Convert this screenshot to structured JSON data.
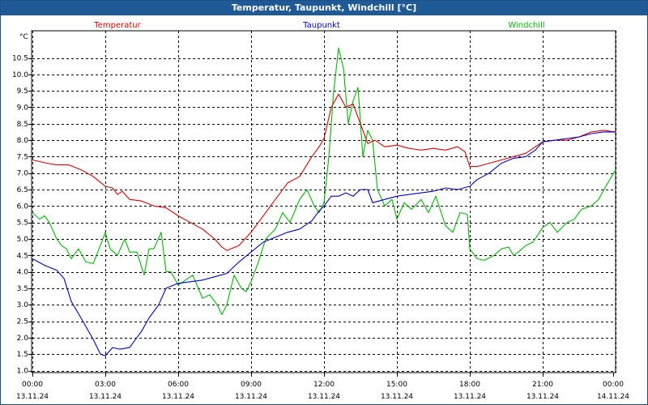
{
  "window": {
    "title": "Temperatur, Taupunkt, Windchill [°C]"
  },
  "chart_data": {
    "type": "line",
    "title": "Temperatur, Taupunkt, Windchill [°C]",
    "ylabel": "°C",
    "ylim": [
      1.0,
      11.0
    ],
    "y_ticks": [
      "1.0",
      "1.5",
      "2.0",
      "2.5",
      "3.0",
      "3.5",
      "4.0",
      "4.5",
      "5.0",
      "5.5",
      "6.0",
      "6.5",
      "7.0",
      "7.5",
      "8.0",
      "8.5",
      "9.0",
      "9.5",
      "10.0",
      "10.5"
    ],
    "xlim": [
      0,
      24
    ],
    "x_ticks": [
      {
        "time": "00:00",
        "date": "13.11.24"
      },
      {
        "time": "03:00",
        "date": "13.11.24"
      },
      {
        "time": "06:00",
        "date": "13.11.24"
      },
      {
        "time": "09:00",
        "date": "13.11.24"
      },
      {
        "time": "12:00",
        "date": "13.11.24"
      },
      {
        "time": "15:00",
        "date": "13.11.24"
      },
      {
        "time": "18:00",
        "date": "13.11.24"
      },
      {
        "time": "21:00",
        "date": "13.11.24"
      },
      {
        "time": "00:00",
        "date": "14.11.24"
      }
    ],
    "grid": true,
    "legend_position": "top",
    "series": [
      {
        "name": "Temperatur",
        "color": "#e00000",
        "x": [
          0,
          0.6,
          1,
          1.5,
          2,
          2.5,
          3,
          3.3,
          3.5,
          3.7,
          4,
          4.5,
          5,
          5.5,
          6,
          6.5,
          7,
          7.5,
          7.8,
          8,
          8.5,
          9,
          9.3,
          9.7,
          10,
          10.5,
          11,
          11.5,
          11.8,
          12,
          12.3,
          12.6,
          12.9,
          13.2,
          13.5,
          13.8,
          14.1,
          14.5,
          15,
          15.5,
          16,
          16.5,
          17,
          17.5,
          17.8,
          18,
          18.3,
          18.8,
          19.3,
          19.8,
          20.3,
          20.7,
          21,
          21.5,
          22,
          22.5,
          23,
          23.5,
          24
        ],
        "y": [
          7.4,
          7.3,
          7.25,
          7.25,
          7.1,
          6.9,
          6.6,
          6.55,
          6.35,
          6.45,
          6.2,
          6.15,
          6.0,
          5.95,
          5.7,
          5.5,
          5.3,
          5.0,
          4.75,
          4.65,
          4.8,
          5.2,
          5.5,
          5.9,
          6.2,
          6.7,
          6.9,
          7.5,
          7.8,
          8.05,
          9.0,
          9.4,
          9.0,
          9.1,
          8.5,
          7.9,
          8.0,
          7.8,
          7.85,
          7.75,
          7.7,
          7.75,
          7.7,
          7.8,
          7.65,
          7.2,
          7.2,
          7.3,
          7.4,
          7.5,
          7.6,
          7.8,
          7.95,
          8.0,
          8.0,
          8.1,
          8.25,
          8.3,
          8.25
        ]
      },
      {
        "name": "Taupunkt",
        "color": "#0000cc",
        "x": [
          0,
          0.5,
          1,
          1.3,
          1.6,
          2,
          2.5,
          2.8,
          3,
          3.3,
          3.6,
          4,
          4.5,
          4.8,
          5.2,
          5.5,
          6,
          6.5,
          7,
          7.5,
          8,
          8.5,
          9,
          9.5,
          10,
          10.5,
          11,
          11.5,
          11.8,
          12,
          12.3,
          12.6,
          12.9,
          13.2,
          13.5,
          13.8,
          14,
          14.5,
          15,
          15.5,
          16,
          16.5,
          17,
          17.5,
          18,
          18.3,
          18.8,
          19.3,
          19.8,
          20.3,
          20.7,
          21,
          21.5,
          22,
          22.5,
          23,
          23.5,
          24
        ],
        "y": [
          4.4,
          4.2,
          4.05,
          3.8,
          3.1,
          2.6,
          1.95,
          1.5,
          1.45,
          1.7,
          1.65,
          1.7,
          2.2,
          2.6,
          3.0,
          3.5,
          3.65,
          3.7,
          3.75,
          3.85,
          3.95,
          4.3,
          4.6,
          4.9,
          5.05,
          5.2,
          5.3,
          5.55,
          5.85,
          6.0,
          6.3,
          6.3,
          6.4,
          6.3,
          6.5,
          6.5,
          6.1,
          6.2,
          6.3,
          6.35,
          6.4,
          6.45,
          6.55,
          6.5,
          6.6,
          6.8,
          7.0,
          7.3,
          7.45,
          7.5,
          7.7,
          7.95,
          8.0,
          8.05,
          8.1,
          8.2,
          8.25,
          8.25
        ]
      },
      {
        "name": "Windchill",
        "color": "#00bb00",
        "x": [
          0,
          0.3,
          0.5,
          0.7,
          1,
          1.2,
          1.4,
          1.6,
          1.9,
          2.2,
          2.5,
          2.8,
          3,
          3.2,
          3.5,
          3.8,
          4,
          4.3,
          4.6,
          4.8,
          5,
          5.3,
          5.5,
          5.7,
          6,
          6.3,
          6.6,
          7,
          7.3,
          7.6,
          7.8,
          8,
          8.3,
          8.6,
          8.8,
          9,
          9.3,
          9.6,
          10,
          10.3,
          10.6,
          11,
          11.3,
          11.6,
          11.8,
          12,
          12.2,
          12.4,
          12.6,
          12.8,
          13,
          13.2,
          13.4,
          13.6,
          13.8,
          14,
          14.2,
          14.5,
          14.8,
          15,
          15.3,
          15.6,
          16,
          16.3,
          16.6,
          17,
          17.3,
          17.6,
          17.9,
          18,
          18.3,
          18.6,
          19,
          19.3,
          19.6,
          19.8,
          20,
          20.3,
          20.6,
          21,
          21.3,
          21.6,
          22,
          22.3,
          22.6,
          23,
          23.3,
          23.6,
          24
        ],
        "y": [
          5.8,
          5.6,
          5.7,
          5.5,
          5.0,
          4.8,
          4.7,
          4.4,
          4.7,
          4.3,
          4.25,
          4.8,
          5.2,
          4.7,
          4.5,
          5.0,
          4.6,
          4.6,
          3.9,
          4.7,
          4.7,
          5.2,
          4.0,
          4.0,
          3.6,
          3.75,
          3.9,
          3.2,
          3.3,
          3.0,
          2.7,
          3.0,
          3.9,
          3.5,
          3.4,
          3.7,
          4.3,
          5.0,
          5.3,
          5.8,
          5.5,
          6.2,
          6.5,
          6.0,
          5.8,
          6.1,
          7.5,
          9.5,
          10.8,
          10.2,
          8.5,
          9.2,
          9.6,
          7.5,
          8.3,
          8.0,
          6.5,
          6.0,
          6.2,
          5.6,
          6.1,
          5.9,
          6.2,
          5.8,
          6.3,
          5.4,
          5.2,
          5.8,
          5.75,
          4.7,
          4.4,
          4.35,
          4.5,
          4.7,
          4.75,
          4.5,
          4.6,
          4.8,
          4.9,
          5.35,
          5.5,
          5.2,
          5.5,
          5.6,
          5.9,
          6.0,
          6.2,
          6.6,
          7.1
        ]
      }
    ]
  }
}
